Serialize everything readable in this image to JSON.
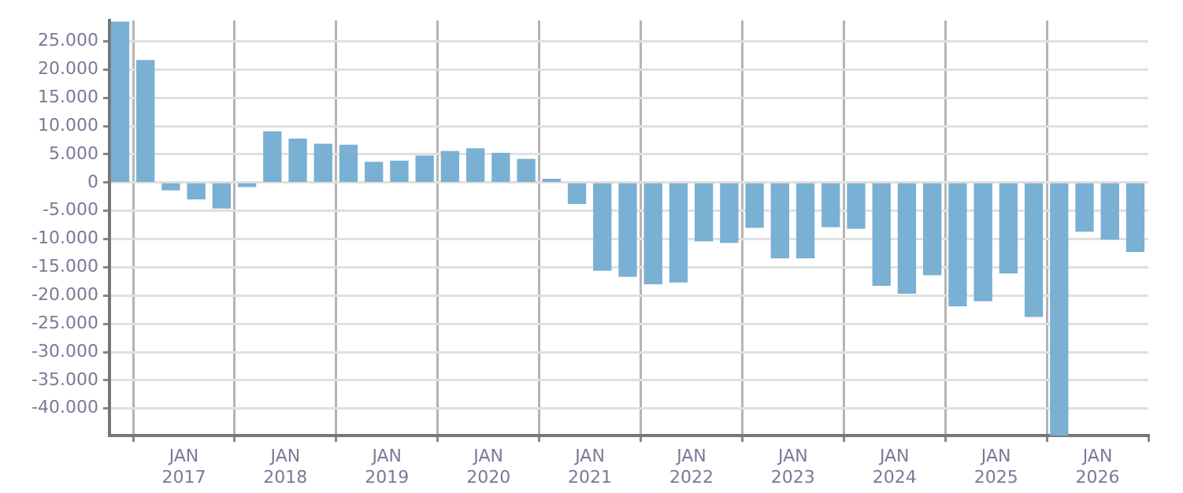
{
  "chart_data": {
    "type": "bar",
    "x": [
      "2016-05-15",
      "2016-08-15",
      "2016-11-15",
      "2017-02-15",
      "2017-05-15",
      "2017-08-15",
      "2017-11-15",
      "2018-02-15",
      "2018-05-15",
      "2018-08-15",
      "2018-11-15",
      "2019-02-15",
      "2019-05-15",
      "2019-08-15",
      "2019-11-15",
      "2020-02-15",
      "2020-05-15",
      "2020-08-15",
      "2020-11-15",
      "2021-02-15",
      "2021-05-15",
      "2021-08-15",
      "2021-11-15",
      "2022-02-15",
      "2022-05-15",
      "2022-08-15",
      "2022-11-15",
      "2023-02-15",
      "2023-05-15",
      "2023-08-15",
      "2023-11-15",
      "2024-02-15",
      "2024-05-15",
      "2024-08-15",
      "2024-11-15",
      "2025-02-15",
      "2025-05-15",
      "2025-08-15",
      "2025-11-15",
      "2026-02-15",
      "2026-05-15"
    ],
    "series": [
      {
        "color": "#7ab0d4",
        "values": [
          28400,
          21600,
          -1300,
          -2900,
          -4500,
          -700,
          9000,
          7700,
          6800,
          6600,
          3600,
          3800,
          4700,
          5500,
          6000,
          5200,
          4100,
          600,
          -3700,
          -15500,
          -16600,
          -17900,
          -17600,
          -10300,
          -10600,
          -7900,
          -13300,
          -13300,
          -7800,
          -8100,
          -18200,
          -19600,
          -16300,
          -21800,
          -20900,
          -16000,
          -23700,
          -44800,
          -8600,
          -10000,
          -12200
        ]
      }
    ],
    "xlim": [
      "2016-04-07",
      "2026-07-01"
    ],
    "xticks": [
      {
        "value": "2017-01-01",
        "label": "JAN 2017"
      },
      {
        "value": "2018-01-01",
        "label": "JAN 2018"
      },
      {
        "value": "2019-01-01",
        "label": "JAN 2019"
      },
      {
        "value": "2020-01-01",
        "label": "JAN 2020"
      },
      {
        "value": "2021-01-01",
        "label": "JAN 2021"
      },
      {
        "value": "2022-01-01",
        "label": "JAN 2022"
      },
      {
        "value": "2023-01-01",
        "label": "JAN 2023"
      },
      {
        "value": "2024-01-01",
        "label": "JAN 2024"
      },
      {
        "value": "2025-01-01",
        "label": "JAN 2025"
      },
      {
        "value": "2026-01-01",
        "label": "JAN 2026"
      }
    ],
    "ylim": [
      -44800,
      28700
    ],
    "yticks": [
      {
        "value": -40000,
        "label": "-40.000"
      },
      {
        "value": -35000,
        "label": "-35.000"
      },
      {
        "value": -30000,
        "label": "-30.000"
      },
      {
        "value": -25000,
        "label": "-25.000"
      },
      {
        "value": -20000,
        "label": "-20.000"
      },
      {
        "value": -15000,
        "label": "-15.000"
      },
      {
        "value": -10000,
        "label": "-10.000"
      },
      {
        "value": -5000,
        "label": "-5.000"
      },
      {
        "value": 0,
        "label": "0"
      },
      {
        "value": 5000,
        "label": "5.000"
      },
      {
        "value": 10000,
        "label": "10.000"
      },
      {
        "value": 15000,
        "label": "15.000"
      },
      {
        "value": 20000,
        "label": "20.000"
      },
      {
        "value": 25000,
        "label": "25.000"
      }
    ],
    "grid": true,
    "legend": false
  }
}
